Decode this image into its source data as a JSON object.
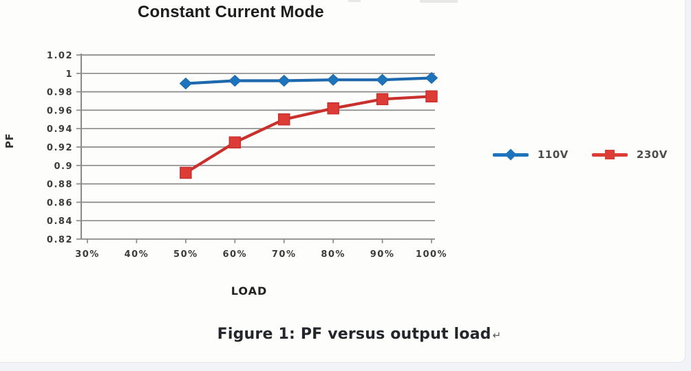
{
  "page": {
    "caption": "Figure 1: PF versus output load",
    "caption_mark": "↵"
  },
  "chart_data": {
    "type": "line",
    "title": "Constant Current Mode",
    "xlabel": "LOAD",
    "ylabel": "PF",
    "categories": [
      "30%",
      "40%",
      "50%",
      "60%",
      "70%",
      "80%",
      "90%",
      "100%"
    ],
    "ylim": [
      0.82,
      1.02
    ],
    "yticks": [
      "1.02",
      "1",
      "0.98",
      "0.96",
      "0.94",
      "0.92",
      "0.9",
      "0.88",
      "0.86",
      "0.84",
      "0.82"
    ],
    "grid": "horizontal-only",
    "legend_position": "right-of-plot",
    "axis_color": "#8a8a8a",
    "tick_label_color": "#3b3b3b",
    "series": [
      {
        "name": "110V",
        "color": "#1e68ae",
        "marker": "diamond",
        "marker_color": "#1d74ba",
        "x": [
          "50%",
          "60%",
          "70%",
          "80%",
          "90%",
          "100%"
        ],
        "values": [
          0.989,
          0.992,
          0.992,
          0.993,
          0.993,
          0.995
        ]
      },
      {
        "name": "230V",
        "color": "#c9302c",
        "marker": "square",
        "marker_color": "#dd3c36",
        "x": [
          "50%",
          "60%",
          "70%",
          "80%",
          "90%",
          "100%"
        ],
        "values": [
          0.892,
          0.925,
          0.95,
          0.962,
          0.972,
          0.975
        ]
      }
    ]
  }
}
